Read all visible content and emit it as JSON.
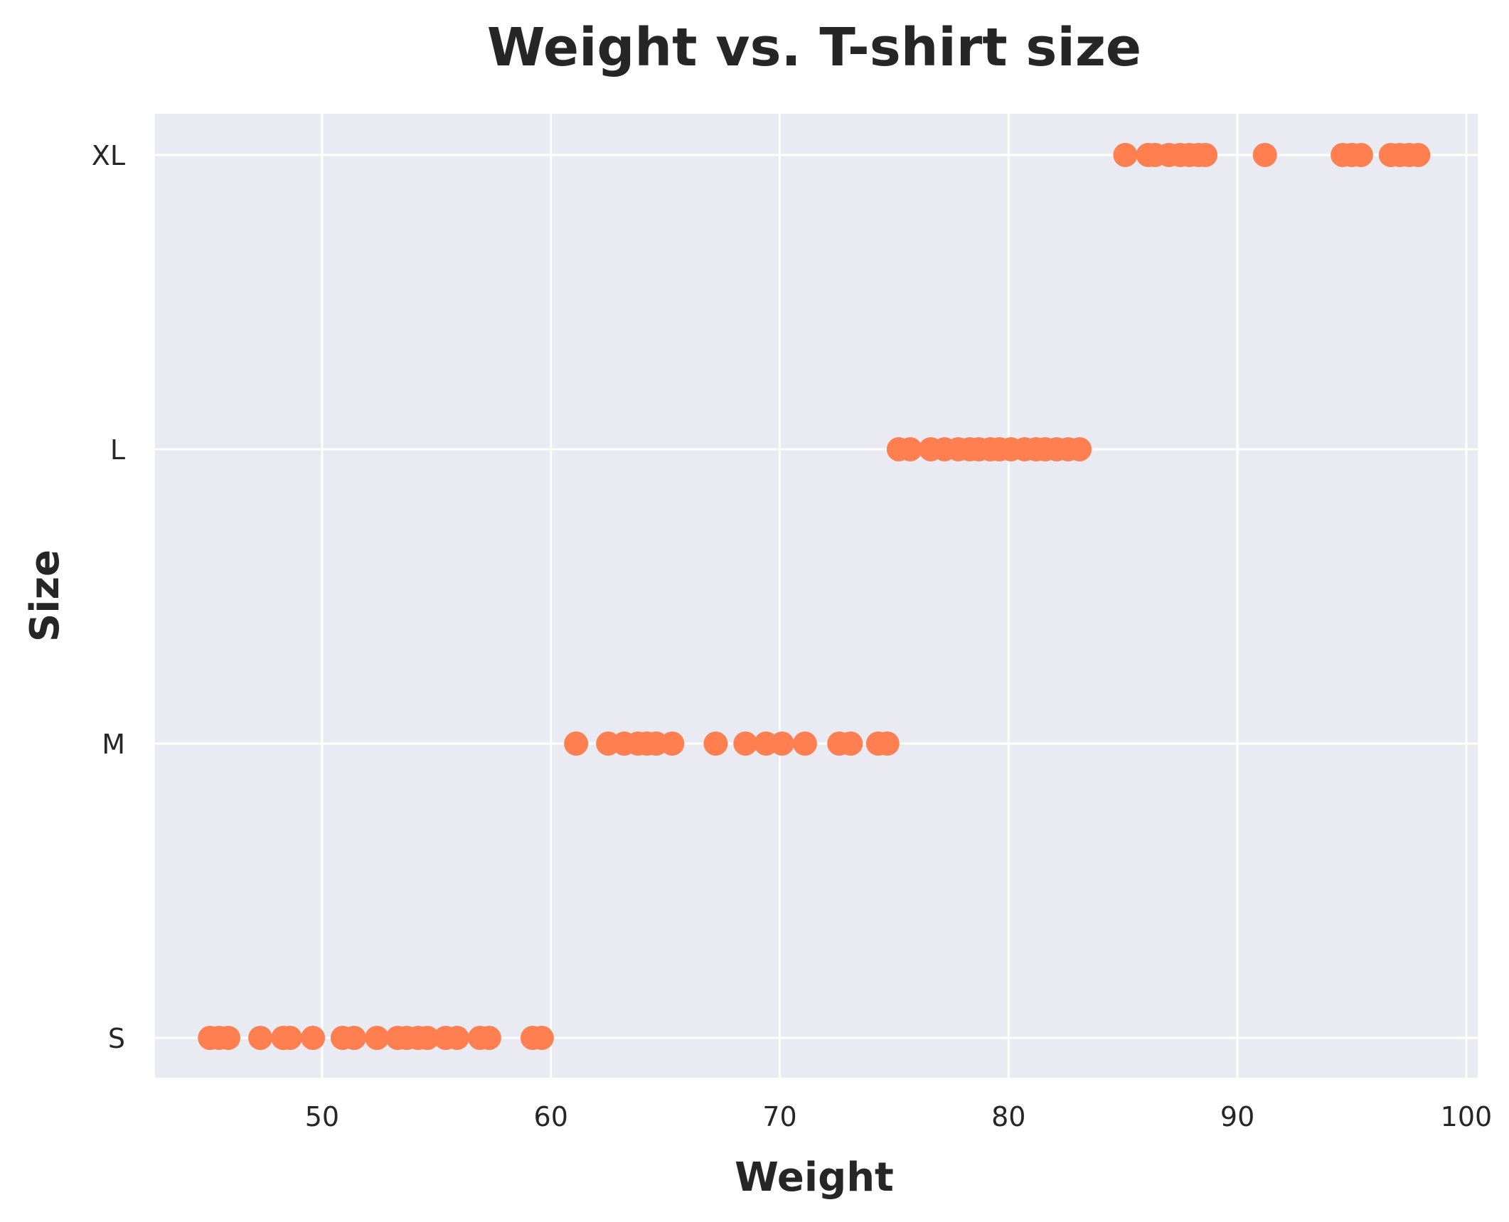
{
  "chart_data": {
    "type": "scatter",
    "title": "Weight vs. T-shirt size",
    "xlabel": "Weight",
    "ylabel": "Size",
    "xlim": [
      42.7,
      100.5
    ],
    "x_ticks": [
      50,
      60,
      70,
      80,
      90,
      100
    ],
    "y_categories": [
      "S",
      "M",
      "L",
      "XL"
    ],
    "grid": true,
    "marker_color": "#ff7f50",
    "background_color": "#eaeaf2",
    "series": [
      {
        "points": [
          {
            "x": 45.1,
            "y": "S"
          },
          {
            "x": 45.5,
            "y": "S"
          },
          {
            "x": 45.9,
            "y": "S"
          },
          {
            "x": 47.3,
            "y": "S"
          },
          {
            "x": 48.3,
            "y": "S"
          },
          {
            "x": 48.6,
            "y": "S"
          },
          {
            "x": 49.6,
            "y": "S"
          },
          {
            "x": 50.9,
            "y": "S"
          },
          {
            "x": 51.4,
            "y": "S"
          },
          {
            "x": 52.4,
            "y": "S"
          },
          {
            "x": 53.3,
            "y": "S"
          },
          {
            "x": 53.7,
            "y": "S"
          },
          {
            "x": 54.2,
            "y": "S"
          },
          {
            "x": 54.6,
            "y": "S"
          },
          {
            "x": 55.4,
            "y": "S"
          },
          {
            "x": 55.9,
            "y": "S"
          },
          {
            "x": 56.9,
            "y": "S"
          },
          {
            "x": 57.3,
            "y": "S"
          },
          {
            "x": 59.2,
            "y": "S"
          },
          {
            "x": 59.6,
            "y": "S"
          },
          {
            "x": 61.1,
            "y": "M"
          },
          {
            "x": 62.5,
            "y": "M"
          },
          {
            "x": 63.2,
            "y": "M"
          },
          {
            "x": 63.8,
            "y": "M"
          },
          {
            "x": 64.2,
            "y": "M"
          },
          {
            "x": 64.6,
            "y": "M"
          },
          {
            "x": 65.3,
            "y": "M"
          },
          {
            "x": 67.2,
            "y": "M"
          },
          {
            "x": 68.5,
            "y": "M"
          },
          {
            "x": 69.4,
            "y": "M"
          },
          {
            "x": 70.1,
            "y": "M"
          },
          {
            "x": 71.1,
            "y": "M"
          },
          {
            "x": 72.6,
            "y": "M"
          },
          {
            "x": 73.1,
            "y": "M"
          },
          {
            "x": 74.3,
            "y": "M"
          },
          {
            "x": 74.7,
            "y": "M"
          },
          {
            "x": 75.2,
            "y": "L"
          },
          {
            "x": 75.7,
            "y": "L"
          },
          {
            "x": 76.6,
            "y": "L"
          },
          {
            "x": 77.2,
            "y": "L"
          },
          {
            "x": 77.8,
            "y": "L"
          },
          {
            "x": 78.3,
            "y": "L"
          },
          {
            "x": 78.7,
            "y": "L"
          },
          {
            "x": 79.2,
            "y": "L"
          },
          {
            "x": 79.6,
            "y": "L"
          },
          {
            "x": 80.1,
            "y": "L"
          },
          {
            "x": 80.7,
            "y": "L"
          },
          {
            "x": 81.2,
            "y": "L"
          },
          {
            "x": 81.6,
            "y": "L"
          },
          {
            "x": 82.1,
            "y": "L"
          },
          {
            "x": 82.6,
            "y": "L"
          },
          {
            "x": 83.1,
            "y": "L"
          },
          {
            "x": 85.1,
            "y": "XL"
          },
          {
            "x": 86.1,
            "y": "XL"
          },
          {
            "x": 86.4,
            "y": "XL"
          },
          {
            "x": 87.0,
            "y": "XL"
          },
          {
            "x": 87.5,
            "y": "XL"
          },
          {
            "x": 87.9,
            "y": "XL"
          },
          {
            "x": 88.3,
            "y": "XL"
          },
          {
            "x": 88.6,
            "y": "XL"
          },
          {
            "x": 91.2,
            "y": "XL"
          },
          {
            "x": 94.6,
            "y": "XL"
          },
          {
            "x": 95.0,
            "y": "XL"
          },
          {
            "x": 95.4,
            "y": "XL"
          },
          {
            "x": 96.7,
            "y": "XL"
          },
          {
            "x": 97.1,
            "y": "XL"
          },
          {
            "x": 97.5,
            "y": "XL"
          },
          {
            "x": 97.9,
            "y": "XL"
          }
        ]
      }
    ]
  }
}
